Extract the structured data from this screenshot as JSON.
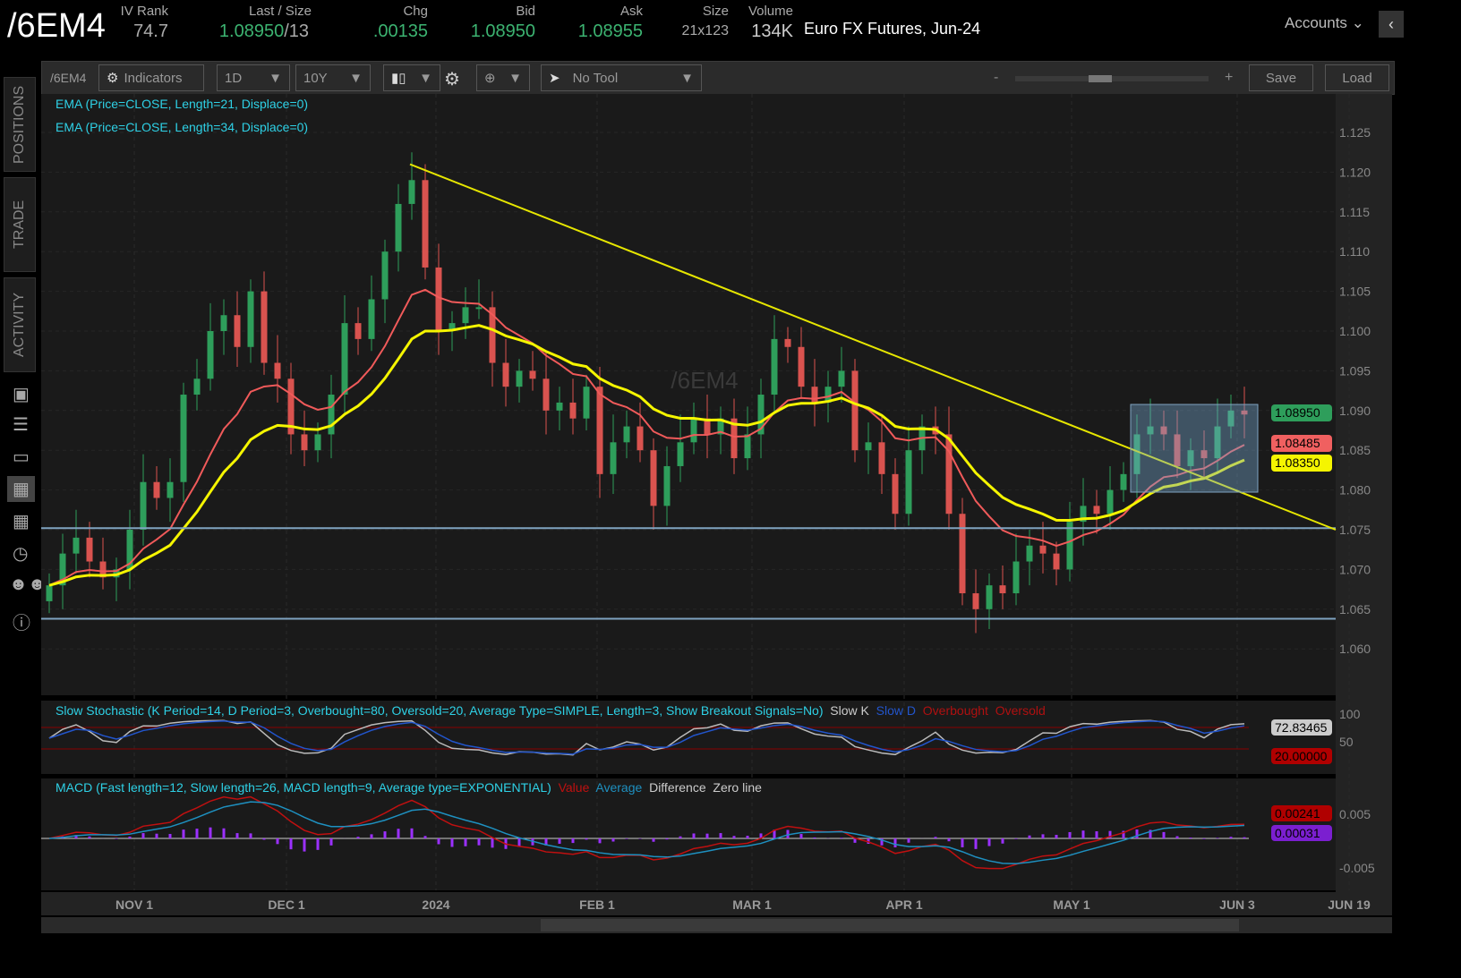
{
  "header": {
    "symbol": "/6EM4",
    "iv_rank_label": "IV Rank",
    "iv_rank": "74.7",
    "last_label": "Last / Size",
    "last": "1.08950",
    "size": "/13",
    "chg_label": "Chg",
    "chg": ".00135",
    "bid_label": "Bid",
    "bid": "1.08950",
    "ask_label": "Ask",
    "ask": "1.08955",
    "size_label": "Size",
    "size_val": "21x123",
    "volume_label": "Volume",
    "volume": "134K",
    "description": "Euro FX Futures, Jun-24",
    "accounts": "Accounts"
  },
  "sidebar": {
    "tabs": [
      "POSITIONS",
      "TRADE",
      "ACTIVITY"
    ]
  },
  "toolbar": {
    "symbol": "/6EM4",
    "indicators": "Indicators",
    "aggregation": "1D",
    "period": "10Y",
    "tool": "No Tool",
    "zoom_minus": "-",
    "zoom_plus": "+",
    "save": "Save",
    "load": "Load"
  },
  "chart": {
    "watermark": "/6EM4",
    "studies": [
      "EMA (Price=CLOSE, Length=21, Displace=0)",
      "EMA (Price=CLOSE, Length=34, Displace=0)"
    ],
    "stoch": {
      "title": "Slow Stochastic (K Period=14, D Period=3, Overbought=80, Oversold=20, Average Type=SIMPLE, Length=3, Show Breakout Signals=No)",
      "legend": [
        "Slow K",
        "Slow D",
        "Overbought",
        "Oversold"
      ],
      "axis": [
        "100",
        "50"
      ],
      "k_value": "72.83465",
      "oversold_value": "20.00000"
    },
    "macd": {
      "title": "MACD (Fast length=12, Slow length=26, MACD length=9, Average type=EXPONENTIAL)",
      "legend": [
        "Value",
        "Average",
        "Difference",
        "Zero line"
      ],
      "axis": [
        "0.005",
        "-0.005"
      ],
      "value_label": "0.00241",
      "diff_label": "0.00031"
    },
    "price_labels": {
      "last": "1.08950",
      "ema21": "1.08485",
      "ema34": "1.08350"
    }
  },
  "colors": {
    "up": "#2e9e5b",
    "down": "#d9534f",
    "ema21": "#f05a5a",
    "ema34": "#f5f500",
    "trendline": "#e6e600"
  },
  "chart_data": {
    "type": "candlestick",
    "y_ticks": [
      "1.125",
      "1.120",
      "1.115",
      "1.110",
      "1.105",
      "1.100",
      "1.095",
      "1.090",
      "1.085",
      "1.080",
      "1.075",
      "1.070",
      "1.065",
      "1.060"
    ],
    "ylim": [
      1.0575,
      1.128
    ],
    "x_ticks": [
      "NOV 1",
      "DEC 1",
      "2024",
      "FEB 1",
      "MAR 1",
      "APR 1",
      "MAY 1",
      "JUN 3",
      "JUN 19"
    ],
    "closes": [
      1.068,
      1.072,
      1.074,
      1.071,
      1.069,
      1.07,
      1.075,
      1.081,
      1.079,
      1.081,
      1.092,
      1.094,
      1.1,
      1.102,
      1.098,
      1.105,
      1.096,
      1.094,
      1.087,
      1.085,
      1.087,
      1.092,
      1.101,
      1.099,
      1.104,
      1.11,
      1.116,
      1.119,
      1.108,
      1.1,
      1.101,
      1.103,
      1.103,
      1.096,
      1.093,
      1.095,
      1.094,
      1.09,
      1.091,
      1.089,
      1.093,
      1.082,
      1.086,
      1.088,
      1.085,
      1.078,
      1.083,
      1.086,
      1.089,
      1.087,
      1.089,
      1.084,
      1.087,
      1.092,
      1.099,
      1.098,
      1.093,
      1.091,
      1.093,
      1.095,
      1.085,
      1.086,
      1.082,
      1.077,
      1.085,
      1.088,
      1.087,
      1.077,
      1.067,
      1.065,
      1.068,
      1.067,
      1.071,
      1.073,
      1.072,
      1.07,
      1.076,
      1.078,
      1.077,
      1.08,
      1.082,
      1.087,
      1.088,
      1.087,
      1.083,
      1.085,
      1.084,
      1.088,
      1.09,
      1.0895
    ],
    "horizontal_lines": [
      1.0752,
      1.0638
    ],
    "trendline": [
      1.121,
      1.075
    ]
  }
}
